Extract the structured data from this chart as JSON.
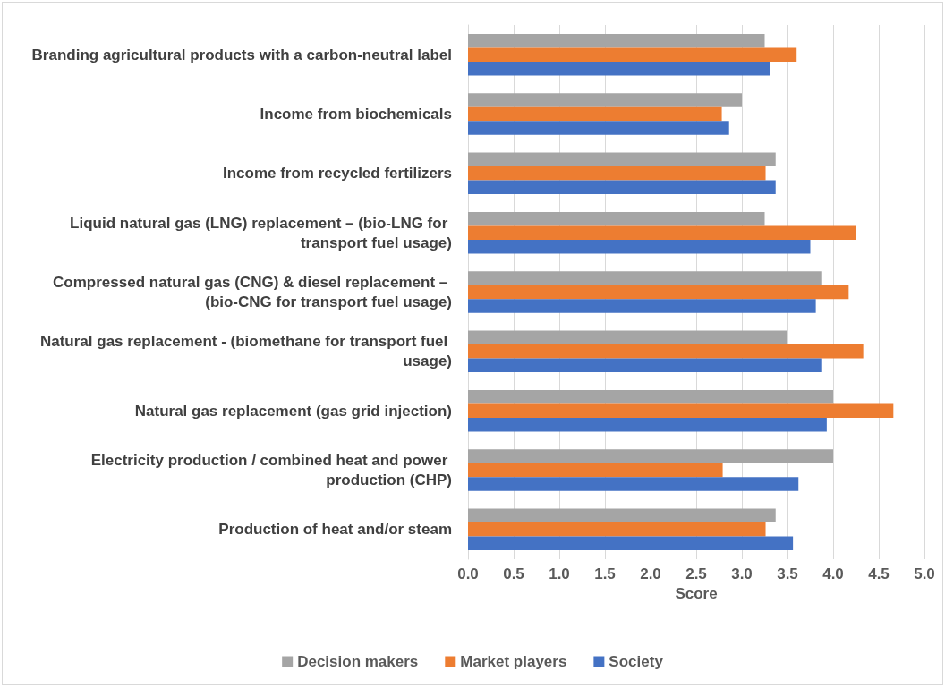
{
  "chart_data": {
    "type": "bar",
    "orientation": "horizontal",
    "xlabel": "Score",
    "categories": [
      "Branding agricultural products with a carbon-neutral label",
      "Income from biochemicals",
      "Income from recycled fertilizers",
      "Liquid natural gas (LNG) replacement – (bio-LNG for transport fuel usage)",
      "Compressed natural gas (CNG) & diesel replacement – (bio-CNG for transport fuel usage)",
      "Natural gas replacement - (biomethane for transport fuel usage)",
      "Natural gas replacement (gas grid injection)",
      "Electricity production / combined heat and power production (CHP)",
      "Production of heat and/or steam"
    ],
    "series": [
      {
        "name": "Decision makers",
        "color": "#a5a5a5",
        "values": [
          3.25,
          3.0,
          3.37,
          3.25,
          3.87,
          3.5,
          4.0,
          4.0,
          3.37
        ]
      },
      {
        "name": "Market players",
        "color": "#ed7d31",
        "values": [
          3.6,
          2.78,
          3.26,
          4.25,
          4.17,
          4.33,
          4.66,
          2.79,
          3.26
        ]
      },
      {
        "name": "Society",
        "color": "#4472c4",
        "values": [
          3.31,
          2.86,
          3.37,
          3.75,
          3.81,
          3.87,
          3.93,
          3.62,
          3.56
        ]
      }
    ],
    "xlim": [
      0,
      5
    ],
    "xticks": [
      {
        "value": 0,
        "label": "0.0"
      },
      {
        "value": 0.5,
        "label": "0.5"
      },
      {
        "value": 1,
        "label": "1.0"
      },
      {
        "value": 1.5,
        "label": "1.5"
      },
      {
        "value": 2,
        "label": "2.0"
      },
      {
        "value": 2.5,
        "label": "2.5"
      },
      {
        "value": 3,
        "label": "3.0"
      },
      {
        "value": 3.5,
        "label": "3.5"
      },
      {
        "value": 4,
        "label": "4.0"
      },
      {
        "value": 4.5,
        "label": "4.5"
      },
      {
        "value": 5,
        "label": "5.0"
      }
    ],
    "grid": "x",
    "legend": "bottom"
  }
}
